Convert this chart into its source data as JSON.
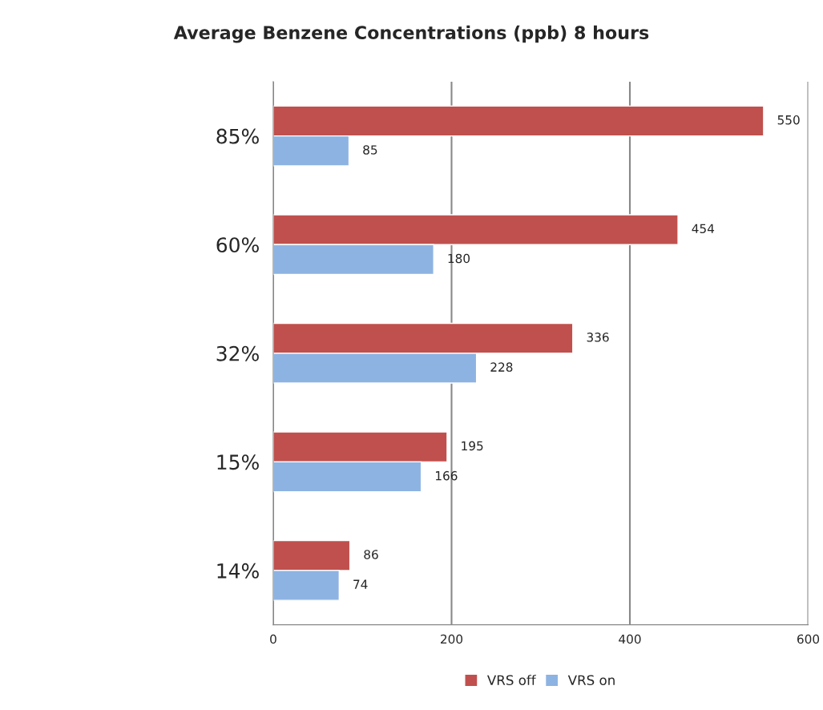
{
  "chart_data": {
    "type": "bar",
    "orientation": "horizontal",
    "title": "Average Benzene Concentrations (ppb) 8 hours",
    "categories": [
      "85%",
      "60%",
      "32%",
      "15%",
      "14%"
    ],
    "series": [
      {
        "name": "VRS off",
        "color": "#c0504d",
        "values": [
          550,
          454,
          336,
          195,
          86
        ]
      },
      {
        "name": "VRS on",
        "color": "#8db3e2",
        "values": [
          85,
          180,
          228,
          166,
          74
        ]
      }
    ],
    "xlim": [
      0,
      600
    ],
    "xticks": [
      0,
      200,
      400,
      600
    ],
    "grid": "x",
    "legend": "bottom",
    "data_labels": true
  }
}
